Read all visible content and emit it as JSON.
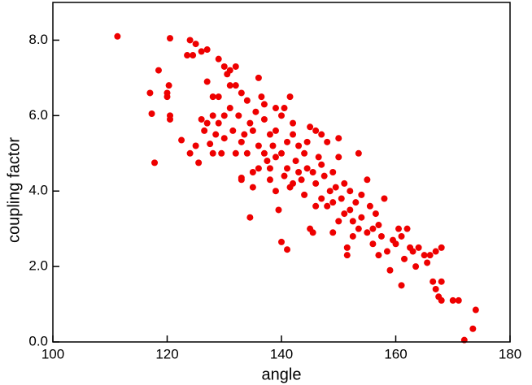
{
  "chart_data": {
    "type": "scatter",
    "x_label": "angle",
    "y_label": "coupling factor",
    "xlim": [
      100,
      180
    ],
    "xticks": [
      100,
      120,
      140,
      160,
      180
    ],
    "ylim": [
      0,
      9
    ],
    "yticks": [
      {
        "value": 0,
        "label": "0.0"
      },
      {
        "value": 2,
        "label": "2.0"
      },
      {
        "value": 4,
        "label": "4.0"
      },
      {
        "value": 6,
        "label": "6.0"
      },
      {
        "value": 8,
        "label": "8.0"
      }
    ],
    "color": "#ee0000",
    "x": [
      111.3,
      120.5,
      124,
      125,
      126,
      127,
      123.5,
      124.5,
      118.5,
      117,
      117.3,
      117.8,
      120,
      120.3,
      120,
      120.5,
      120.5,
      122.5,
      124,
      125,
      125.5,
      127,
      128,
      129,
      130,
      130.5,
      131,
      132,
      131,
      133,
      129,
      126,
      126.5,
      127.5,
      128.5,
      129,
      130,
      131,
      130,
      128,
      129.5,
      132,
      132.5,
      133.5,
      133,
      133,
      134.5,
      134,
      135,
      136,
      136.5,
      137,
      135.5,
      137,
      138,
      136,
      137.5,
      138,
      139,
      139.5,
      140,
      141,
      139,
      140,
      140.5,
      141.5,
      142,
      140,
      141,
      142,
      143,
      144,
      145,
      146,
      147,
      148,
      150,
      149,
      148.5,
      147,
      146,
      145,
      145.5,
      153.5,
      150,
      151,
      152,
      152,
      150,
      149,
      151.5,
      151.5,
      152.5,
      153,
      154,
      155,
      155.5,
      156,
      156,
      157,
      157.5,
      158,
      158.5,
      159,
      160,
      161,
      160.5,
      161.5,
      162,
      162.5,
      163,
      164,
      165,
      165.5,
      166,
      167,
      168,
      166.5,
      167,
      167.5,
      168,
      168,
      170,
      171,
      172,
      173.5,
      174,
      138,
      139,
      140.5,
      141.5,
      142.5,
      143.5,
      144,
      144.5,
      146,
      146.5,
      147.5,
      148,
      149,
      150.5,
      151,
      143,
      142,
      141,
      139,
      137,
      136,
      135,
      138.5,
      144.5,
      145.5,
      147,
      149.5,
      152.5,
      154,
      155,
      153.5,
      156.5,
      157,
      159.5,
      161,
      163.5,
      134.5,
      133,
      131.5,
      127,
      128,
      132,
      134,
      135
    ],
    "values": [
      8.1,
      8.05,
      8.0,
      7.9,
      7.7,
      7.75,
      7.6,
      7.6,
      7.2,
      6.6,
      6.05,
      4.75,
      6.5,
      6.8,
      6.6,
      6.0,
      5.9,
      5.35,
      5.0,
      5.2,
      4.75,
      6.9,
      6.5,
      7.5,
      7.3,
      7.1,
      7.2,
      7.3,
      6.8,
      6.6,
      6.5,
      5.9,
      5.6,
      5.25,
      5.5,
      5.8,
      6.0,
      6.2,
      5.4,
      5.0,
      5.0,
      5.0,
      6.0,
      5.5,
      4.3,
      4.35,
      3.3,
      5.0,
      4.5,
      7.0,
      6.5,
      6.3,
      6.1,
      5.9,
      5.5,
      5.2,
      4.8,
      4.3,
      4.0,
      3.5,
      2.65,
      2.45,
      6.2,
      6.0,
      6.2,
      6.5,
      5.5,
      5.0,
      4.6,
      4.2,
      4.5,
      5.0,
      5.7,
      5.6,
      5.5,
      5.3,
      5.4,
      4.5,
      4.0,
      3.8,
      3.6,
      3.0,
      2.9,
      5.0,
      4.9,
      4.2,
      4.0,
      3.5,
      3.2,
      2.9,
      2.5,
      2.3,
      2.8,
      3.7,
      3.3,
      4.3,
      3.6,
      3.0,
      2.6,
      2.3,
      2.8,
      3.8,
      2.4,
      1.9,
      2.6,
      1.5,
      3.0,
      2.2,
      3.0,
      2.5,
      2.4,
      2.5,
      2.3,
      2.1,
      2.3,
      2.4,
      2.5,
      1.6,
      1.4,
      1.2,
      1.6,
      1.1,
      1.1,
      1.1,
      0.05,
      0.35,
      0.85,
      4.6,
      4.9,
      4.4,
      4.1,
      4.8,
      4.3,
      3.9,
      4.6,
      4.2,
      4.9,
      4.4,
      3.6,
      3.7,
      3.8,
      3.4,
      5.2,
      5.8,
      5.3,
      5.6,
      5.0,
      4.6,
      4.1,
      5.2,
      5.3,
      4.5,
      4.7,
      4.1,
      3.2,
      3.9,
      2.9,
      3.0,
      3.4,
      3.1,
      2.7,
      2.8,
      2.0,
      5.8,
      5.3,
      5.6,
      5.8,
      6.0,
      6.8,
      6.4,
      5.6
    ]
  }
}
